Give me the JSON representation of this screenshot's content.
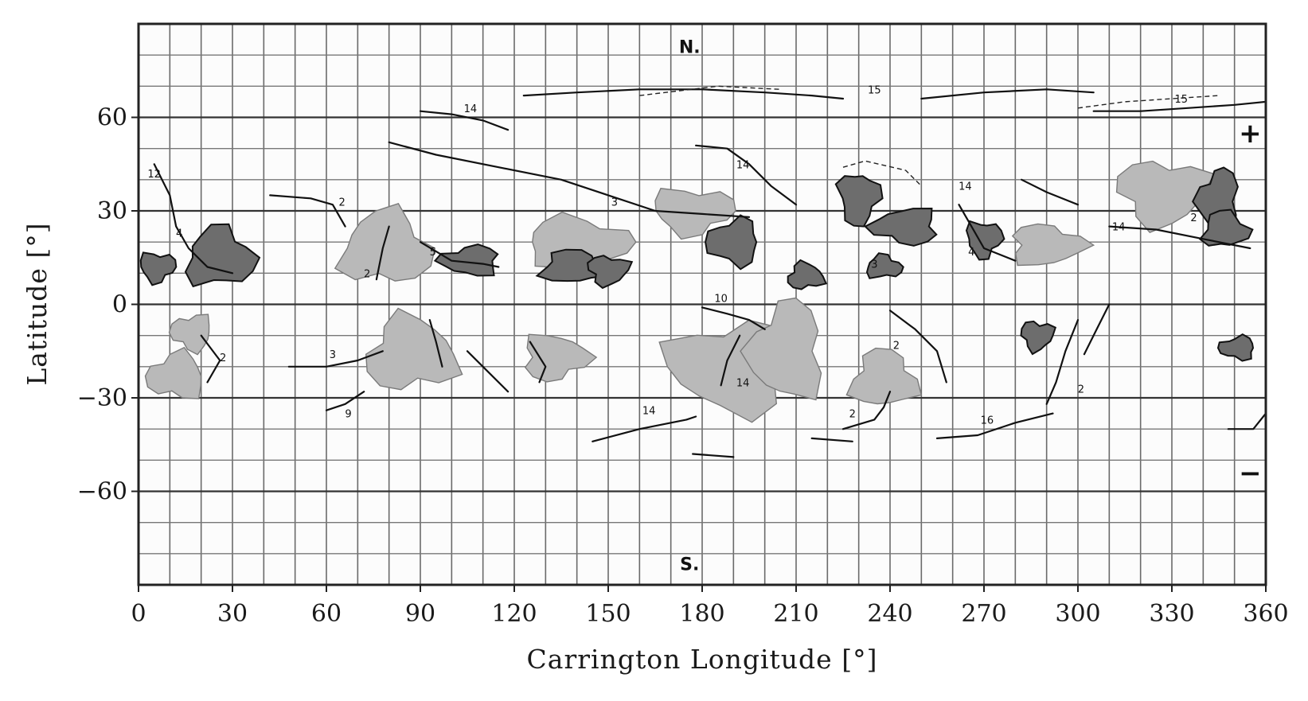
{
  "chart_data": {
    "type": "map",
    "title": "",
    "xlabel": "Carrington Longitude [°]",
    "ylabel": "Latitude [°]",
    "xlim": [
      0,
      360
    ],
    "ylim": [
      -90,
      90
    ],
    "x_ticks": [
      0,
      30,
      60,
      90,
      120,
      150,
      180,
      210,
      240,
      270,
      300,
      330,
      360
    ],
    "y_ticks": [
      60,
      30,
      0,
      -30,
      -60
    ],
    "y_tick_labels": [
      "60",
      "30",
      "0",
      "−30",
      "−60"
    ],
    "grid_x_step": 10,
    "grid_y_step": 10,
    "hemisphere_labels": [
      {
        "text": "N.",
        "lon": 176,
        "lat": 83
      },
      {
        "text": "S.",
        "lon": 176,
        "lat": -83
      }
    ],
    "polarity_labels": [
      {
        "text": "+",
        "lon": 355,
        "lat": 55
      },
      {
        "text": "−",
        "lon": 355,
        "lat": -54
      }
    ],
    "rotation_number_labels": [
      {
        "text": "15",
        "lon": 235,
        "lat": 69
      },
      {
        "text": "15",
        "lon": 333,
        "lat": 66
      },
      {
        "text": "14",
        "lon": 106,
        "lat": 63
      },
      {
        "text": "14",
        "lon": 193,
        "lat": 45
      },
      {
        "text": "14",
        "lon": 264,
        "lat": 38
      },
      {
        "text": "14",
        "lon": 313,
        "lat": 25
      },
      {
        "text": "14",
        "lon": 193,
        "lat": -25
      },
      {
        "text": "14",
        "lon": 163,
        "lat": -34
      },
      {
        "text": "12",
        "lon": 5,
        "lat": 42
      },
      {
        "text": "4",
        "lon": 13,
        "lat": 23
      },
      {
        "text": "2",
        "lon": 65,
        "lat": 33
      },
      {
        "text": "3",
        "lon": 152,
        "lat": 33
      },
      {
        "text": "5",
        "lon": 94,
        "lat": 17
      },
      {
        "text": "2",
        "lon": 73,
        "lat": 10
      },
      {
        "text": "10",
        "lon": 186,
        "lat": 2
      },
      {
        "text": "3",
        "lon": 62,
        "lat": -16
      },
      {
        "text": "2",
        "lon": 27,
        "lat": -17
      },
      {
        "text": "9",
        "lon": 67,
        "lat": -35
      },
      {
        "text": "3",
        "lon": 235,
        "lat": 13
      },
      {
        "text": "2",
        "lon": 242,
        "lat": -13
      },
      {
        "text": "2",
        "lon": 228,
        "lat": -35
      },
      {
        "text": "16",
        "lon": 271,
        "lat": -37
      },
      {
        "text": "4",
        "lon": 266,
        "lat": 17
      },
      {
        "text": "2",
        "lon": 301,
        "lat": -27
      },
      {
        "text": "2",
        "lon": 337,
        "lat": 28
      }
    ],
    "coronal_hole_regions_approx": [
      {
        "lon": 79,
        "lat": 18
      },
      {
        "lon": 140,
        "lat": 20
      },
      {
        "lon": 177,
        "lat": 30
      },
      {
        "lon": 190,
        "lat": -20
      },
      {
        "lon": 207,
        "lat": -15
      },
      {
        "lon": 238,
        "lat": -24
      },
      {
        "lon": 290,
        "lat": 19
      },
      {
        "lon": 327,
        "lat": 36
      },
      {
        "lon": 17,
        "lat": -9
      },
      {
        "lon": 12,
        "lat": -23
      },
      {
        "lon": 87,
        "lat": -16
      },
      {
        "lon": 133,
        "lat": -17
      }
    ],
    "active_region_clusters_approx": [
      {
        "lon": 26,
        "lat": 15
      },
      {
        "lon": 6,
        "lat": 12
      },
      {
        "lon": 106,
        "lat": 14
      },
      {
        "lon": 139,
        "lat": 12
      },
      {
        "lon": 150,
        "lat": 11
      },
      {
        "lon": 190,
        "lat": 20
      },
      {
        "lon": 213,
        "lat": 9
      },
      {
        "lon": 230,
        "lat": 34
      },
      {
        "lon": 245,
        "lat": 25
      },
      {
        "lon": 238,
        "lat": 12
      },
      {
        "lon": 270,
        "lat": 21
      },
      {
        "lon": 345,
        "lat": 33
      },
      {
        "lon": 347,
        "lat": 24
      },
      {
        "lon": 287,
        "lat": -10
      },
      {
        "lon": 351,
        "lat": -14
      }
    ]
  }
}
